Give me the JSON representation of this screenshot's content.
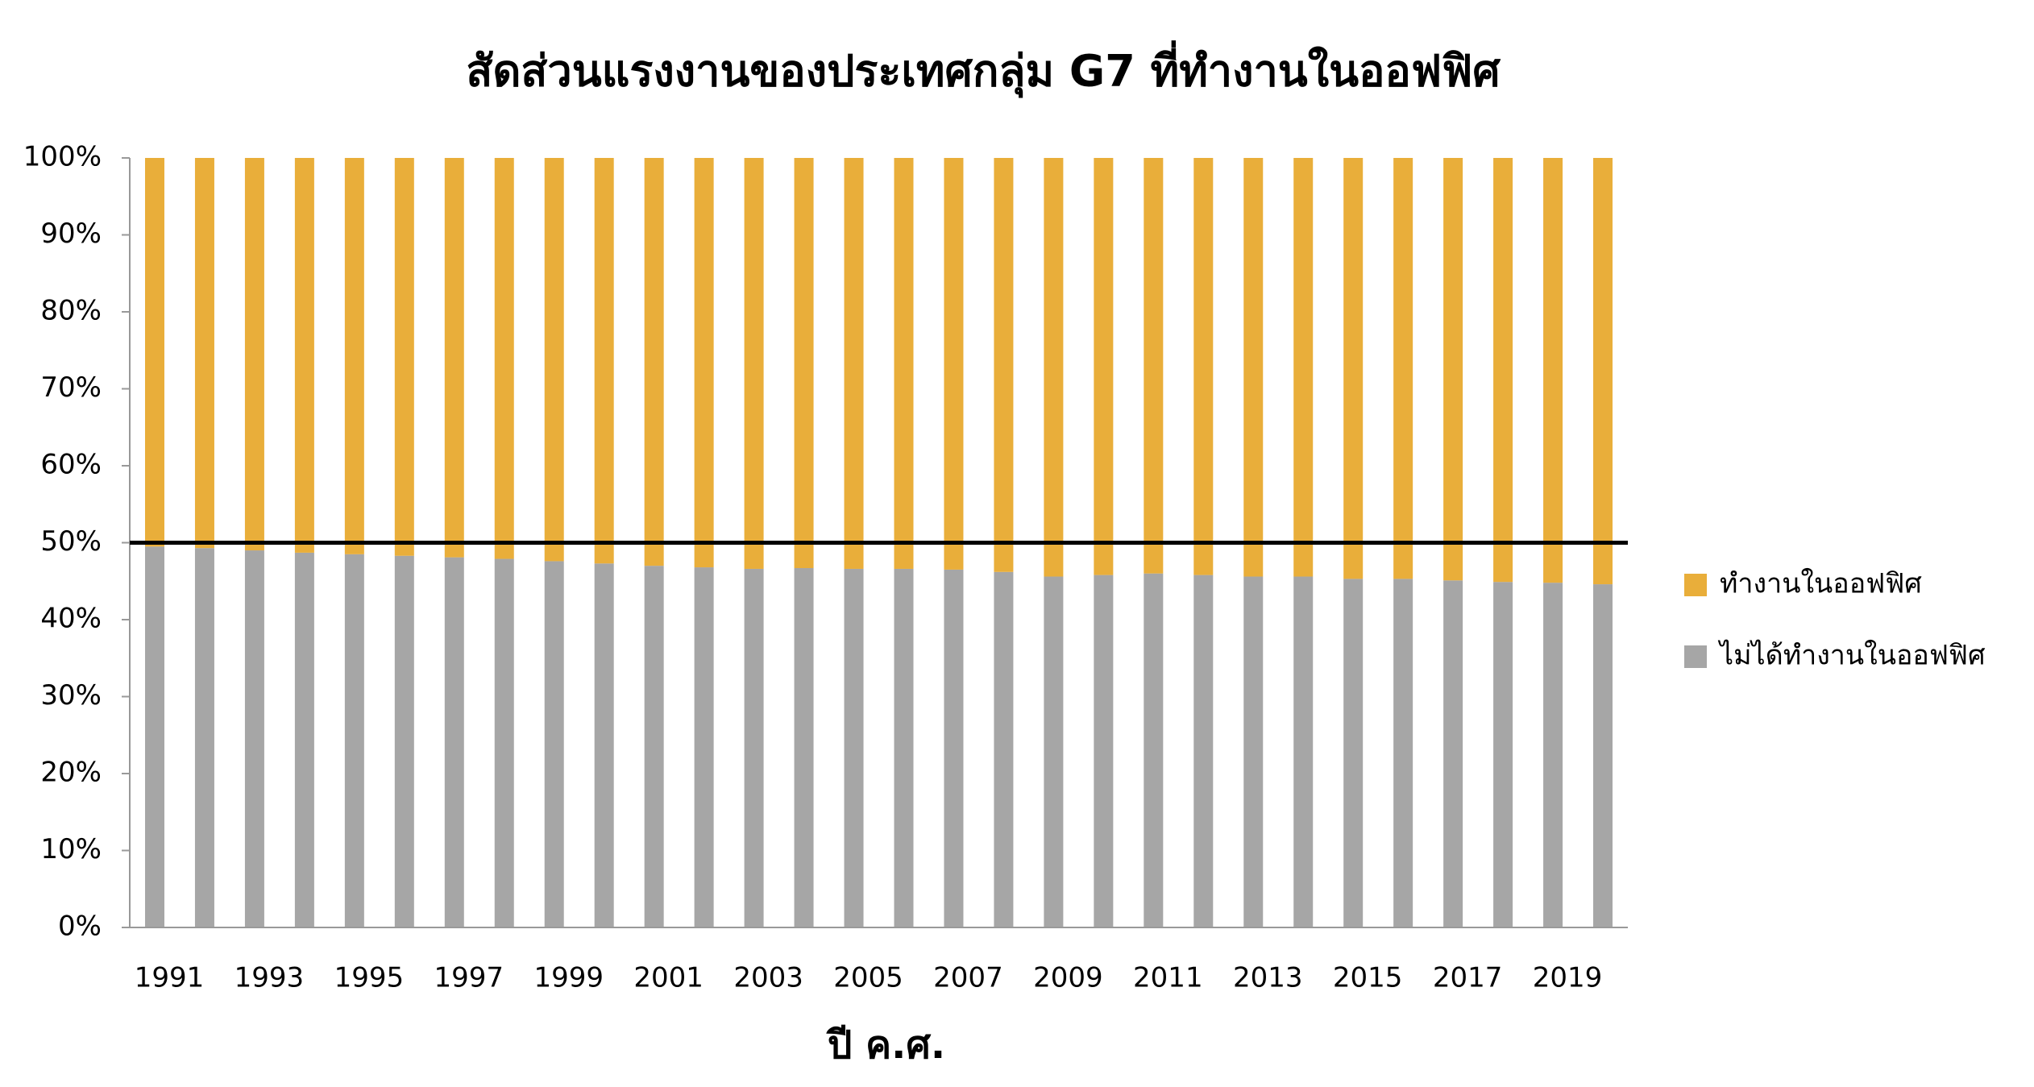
{
  "chart_data": {
    "type": "stacked_bar",
    "title": "สัดส่วนแรงงานของประเทศกลุ่ม G7 ที่ทำงานในออฟฟิศ",
    "x_label": "ปี ค.ศ.",
    "categories": [
      "1991",
      null,
      "1993",
      null,
      "1995",
      null,
      "1997",
      null,
      "1999",
      null,
      "2001",
      null,
      "2003",
      null,
      "2005",
      null,
      "2007",
      null,
      "2009",
      null,
      "2011",
      null,
      "2013",
      null,
      "2015",
      null,
      "2017",
      null,
      "2019",
      null
    ],
    "series": [
      {
        "name": "ไม่ได้ทำงานในออฟฟิศ",
        "color": "#a6a6a6",
        "values": [
          49.5,
          49.3,
          49.0,
          48.7,
          48.5,
          48.3,
          48.1,
          47.9,
          47.6,
          47.3,
          47.0,
          46.8,
          46.6,
          46.7,
          46.6,
          46.6,
          46.5,
          46.2,
          45.6,
          45.8,
          46.0,
          45.8,
          45.6,
          45.6,
          45.3,
          45.3,
          45.1,
          44.9,
          44.8,
          44.6
        ]
      },
      {
        "name": "ทำงานในออฟฟิศ",
        "color": "#e9ae3a",
        "values": [
          50.5,
          50.7,
          51.0,
          51.3,
          51.5,
          51.7,
          51.9,
          52.1,
          52.4,
          52.7,
          53.0,
          53.2,
          53.4,
          53.3,
          53.4,
          53.4,
          53.5,
          53.8,
          54.4,
          54.2,
          54.0,
          54.2,
          54.4,
          54.4,
          54.7,
          54.7,
          54.9,
          55.1,
          55.2,
          55.4
        ]
      }
    ],
    "ylim": [
      0,
      100
    ],
    "yticks": [
      {
        "value": 0,
        "label": "0%"
      },
      {
        "value": 10,
        "label": "10%"
      },
      {
        "value": 20,
        "label": "20%"
      },
      {
        "value": 30,
        "label": "30%"
      },
      {
        "value": 40,
        "label": "40%"
      },
      {
        "value": 50,
        "label": "50%"
      },
      {
        "value": 60,
        "label": "60%"
      },
      {
        "value": 70,
        "label": "70%"
      },
      {
        "value": 80,
        "label": "80%"
      },
      {
        "value": 90,
        "label": "90%"
      },
      {
        "value": 100,
        "label": "100%"
      }
    ],
    "reference_line": 50,
    "legend": "right",
    "grid": false
  }
}
